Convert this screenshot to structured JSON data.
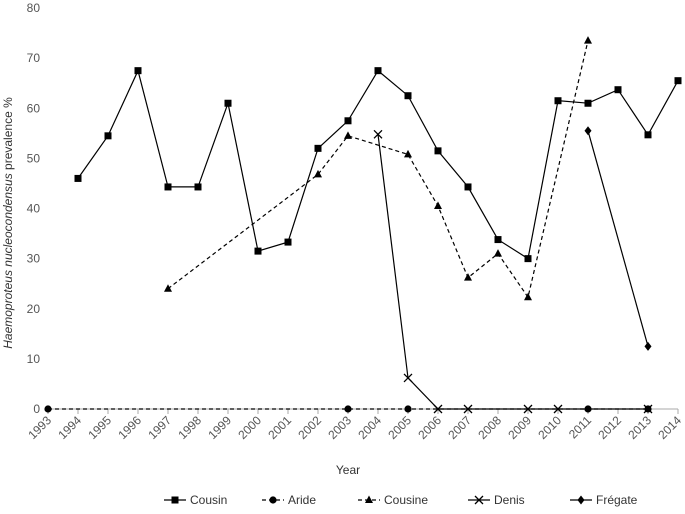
{
  "chart_data": {
    "type": "line",
    "xlabel": "Year",
    "ylabel_italic": "Haemoproteus nucleocondensus",
    "ylabel_rest": " prevalence %",
    "ylim": [
      0,
      80
    ],
    "yticks": [
      0,
      10,
      20,
      30,
      40,
      50,
      60,
      70,
      80
    ],
    "x": [
      "1993",
      "1994",
      "1995",
      "1996",
      "1997",
      "1998",
      "1999",
      "2000",
      "2001",
      "2002",
      "2003",
      "2004",
      "2005",
      "2006",
      "2007",
      "2008",
      "2009",
      "2010",
      "2011",
      "2012",
      "2013",
      "2014"
    ],
    "grid": false,
    "legend_position": "bottom",
    "series": [
      {
        "name": "Cousin",
        "marker": "square",
        "dash": "solid",
        "values": [
          null,
          46,
          54.5,
          67.5,
          44.3,
          44.3,
          61,
          31.5,
          33.3,
          52,
          57.5,
          67.5,
          62.5,
          51.5,
          44.3,
          33.8,
          30,
          61.5,
          61,
          63.7,
          54.7,
          65.5
        ]
      },
      {
        "name": "Aride",
        "marker": "circle",
        "dash": "dashed",
        "values": [
          0,
          null,
          null,
          null,
          null,
          null,
          null,
          null,
          null,
          null,
          0,
          null,
          0,
          null,
          null,
          null,
          null,
          null,
          0,
          null,
          0,
          null
        ]
      },
      {
        "name": "Cousine",
        "marker": "triangle",
        "dash": "dashed",
        "values": [
          null,
          null,
          null,
          null,
          24,
          null,
          null,
          null,
          null,
          46.8,
          54.5,
          null,
          50.8,
          40.5,
          26.2,
          31,
          22.3,
          null,
          73.5,
          null,
          null,
          null
        ]
      },
      {
        "name": "Denis",
        "marker": "x",
        "dash": "solid",
        "values": [
          null,
          null,
          null,
          null,
          null,
          null,
          null,
          null,
          null,
          null,
          null,
          54.8,
          6.2,
          0,
          0,
          null,
          0,
          0,
          null,
          null,
          0,
          null
        ]
      },
      {
        "name": "Frégate",
        "marker": "diamond",
        "dash": "solid",
        "values": [
          null,
          null,
          null,
          null,
          null,
          null,
          null,
          null,
          null,
          null,
          null,
          null,
          null,
          null,
          null,
          null,
          null,
          null,
          55.5,
          null,
          12.5,
          null
        ]
      }
    ]
  }
}
